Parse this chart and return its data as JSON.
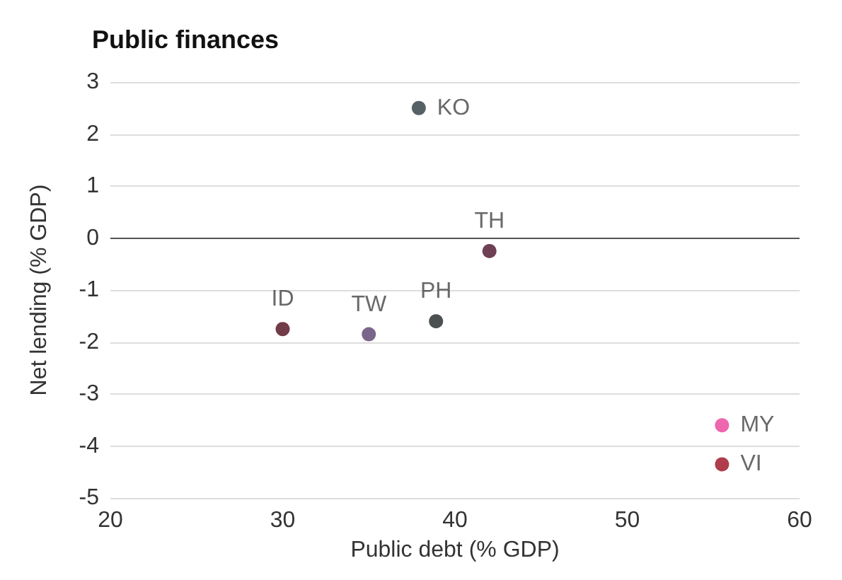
{
  "chart_data": {
    "type": "scatter",
    "title": "Public finances",
    "xlabel": "Public debt (% GDP)",
    "ylabel": "Net lending (% GDP)",
    "series": [
      {
        "name": "KO",
        "color": "#2b3a3e",
        "x": [
          37.9
        ],
        "values": [
          2.5
        ]
      },
      {
        "name": "TH",
        "color": "#4a1028",
        "x": [
          42
        ],
        "values": [
          -0.25
        ]
      },
      {
        "name": "ID",
        "color": "#4d0a1a",
        "x": [
          30
        ],
        "values": [
          -1.75
        ]
      },
      {
        "name": "TW",
        "color": "#5a3f6e",
        "x": [
          35
        ],
        "values": [
          -1.85
        ]
      },
      {
        "name": "PH",
        "color": "#1e2424",
        "x": [
          38.9
        ],
        "values": [
          -1.6
        ]
      },
      {
        "name": "MY",
        "color": "#e8409a",
        "x": [
          55.5
        ],
        "values": [
          -3.6
        ]
      },
      {
        "name": "VI",
        "color": "#9b0d1f",
        "x": [
          55.5
        ],
        "values": [
          -4.35
        ]
      }
    ],
    "xlim": [
      20,
      60
    ],
    "xticks": [
      20,
      30,
      40,
      50,
      60
    ],
    "ylim": [
      -5,
      3
    ],
    "yticks": [
      -5,
      -4,
      -3,
      -2,
      -1,
      0,
      1,
      2,
      3
    ],
    "grid": "y",
    "marker": "circle",
    "legend": false,
    "ref_lines": [
      {
        "axis": "y",
        "value": 0,
        "color": "#555555"
      }
    ]
  }
}
